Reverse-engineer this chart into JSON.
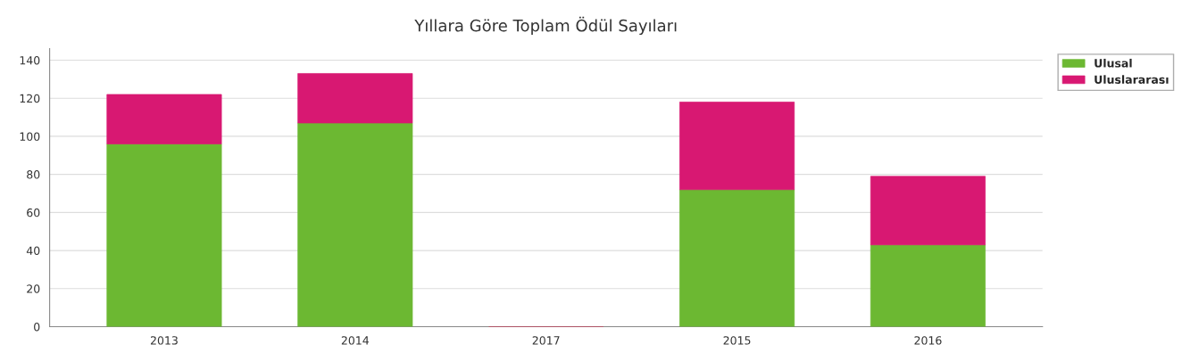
{
  "chart_data": {
    "type": "bar",
    "title": "Yıllara Göre Toplam Ödül Sayıları",
    "categories": [
      "2013",
      "2014",
      "2017",
      "2015",
      "2016"
    ],
    "stacked": true,
    "series": [
      {
        "name": "Ulusal",
        "color": "#6cb832",
        "values": [
          96,
          107,
          0,
          72,
          43
        ]
      },
      {
        "name": "Uluslararası",
        "color": "#d81872",
        "values": [
          26,
          26,
          0,
          46,
          36
        ]
      }
    ],
    "ylim": [
      0,
      146
    ],
    "yticks": [
      0,
      20,
      40,
      60,
      80,
      100,
      120,
      140
    ],
    "grid": "y",
    "legend": "top right"
  }
}
